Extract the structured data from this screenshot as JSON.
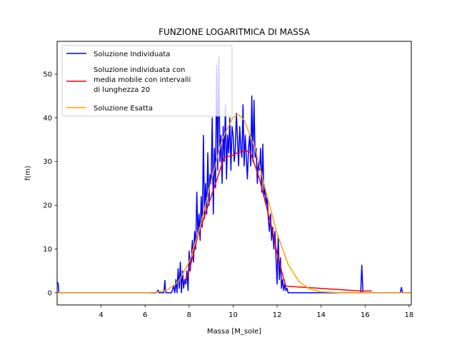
{
  "chart_data": {
    "type": "line",
    "title": "FUNZIONE LOGARITMICA DI MASSA",
    "xlabel": "Massa [M_sole]",
    "ylabel": "f(m)",
    "xlim": [
      2.0,
      18.1
    ],
    "ylim": [
      -2.8,
      57.5
    ],
    "xticks": [
      4,
      6,
      8,
      10,
      12,
      14,
      16,
      18
    ],
    "yticks": [
      0,
      10,
      20,
      30,
      40,
      50
    ],
    "grid": false,
    "legend_position": "top-left",
    "series": [
      {
        "name": "Soluzione Individuata",
        "color": "#0000ff",
        "x": [
          2.0,
          2.05,
          2.08,
          2.1,
          2.2,
          6.5,
          6.6,
          6.62,
          6.7,
          6.8,
          6.85,
          6.9,
          6.92,
          6.95,
          7.0,
          7.1,
          7.2,
          7.3,
          7.35,
          7.4,
          7.45,
          7.5,
          7.55,
          7.6,
          7.65,
          7.7,
          7.75,
          7.8,
          7.85,
          7.9,
          7.95,
          8.0,
          8.05,
          8.1,
          8.15,
          8.2,
          8.25,
          8.3,
          8.35,
          8.4,
          8.45,
          8.5,
          8.55,
          8.6,
          8.65,
          8.7,
          8.75,
          8.8,
          8.85,
          8.9,
          8.95,
          9.0,
          9.05,
          9.1,
          9.15,
          9.2,
          9.25,
          9.3,
          9.35,
          9.4,
          9.45,
          9.5,
          9.55,
          9.6,
          9.65,
          9.7,
          9.75,
          9.8,
          9.85,
          9.9,
          9.95,
          10.0,
          10.05,
          10.1,
          10.15,
          10.2,
          10.25,
          10.3,
          10.35,
          10.4,
          10.45,
          10.5,
          10.55,
          10.6,
          10.65,
          10.7,
          10.75,
          10.8,
          10.85,
          10.9,
          10.95,
          11.0,
          11.05,
          11.1,
          11.15,
          11.2,
          11.25,
          11.3,
          11.35,
          11.4,
          11.45,
          11.5,
          11.55,
          11.6,
          11.65,
          11.7,
          11.75,
          11.8,
          11.85,
          11.9,
          11.95,
          12.0,
          12.05,
          12.1,
          12.15,
          12.2,
          12.25,
          12.3,
          12.35,
          12.4,
          12.45,
          12.5,
          12.55,
          12.6,
          12.7,
          12.8,
          12.9,
          13.0,
          15.8,
          15.85,
          15.9,
          15.95,
          16.0,
          16.1,
          17.6,
          17.65,
          17.7,
          17.75,
          17.8,
          18.1
        ],
        "y": [
          2.5,
          2.0,
          0.0,
          0.0,
          0.0,
          0.0,
          0.6,
          0.0,
          0.0,
          0.0,
          0.0,
          2.8,
          0.5,
          0.0,
          0.0,
          0.0,
          0.0,
          1.5,
          0.0,
          3.0,
          0.0,
          5.5,
          1.0,
          7.0,
          0.0,
          5.0,
          1.0,
          3.0,
          2.0,
          5.0,
          0.5,
          9.5,
          5.0,
          8.5,
          12.0,
          7.0,
          14.0,
          10.0,
          23.0,
          13.0,
          18.0,
          12.0,
          22.0,
          15.0,
          36.0,
          17.0,
          25.0,
          18.0,
          32.0,
          20.0,
          27.0,
          25.0,
          40.0,
          18.0,
          33.0,
          24.0,
          52.0,
          28.0,
          54.0,
          30.0,
          36.0,
          25.0,
          38.0,
          30.0,
          43.0,
          26.0,
          36.0,
          32.0,
          40.0,
          28.0,
          38.0,
          36.0,
          30.0,
          33.0,
          41.0,
          35.0,
          29.0,
          38.0,
          33.0,
          31.0,
          43.0,
          29.0,
          36.0,
          31.0,
          26.0,
          33.0,
          36.0,
          29.0,
          45.0,
          30.0,
          44.0,
          31.0,
          33.0,
          25.0,
          30.0,
          28.0,
          33.0,
          23.0,
          34.0,
          22.0,
          24.0,
          20.0,
          22.0,
          17.0,
          14.0,
          18.0,
          12.0,
          15.0,
          10.0,
          14.0,
          8.0,
          2.0,
          13.0,
          3.0,
          8.0,
          1.0,
          3.0,
          0.5,
          2.0,
          0.5,
          1.0,
          0.0,
          0.0,
          0.0,
          0.0,
          0.0,
          0.0,
          0.0,
          0.0,
          6.3,
          0.0,
          0.0,
          0.0,
          0.0,
          0.0,
          1.2,
          0.0,
          0.0,
          0.0,
          0.0
        ]
      },
      {
        "name": "Soluzione individuata con media mobile con intervalli di lunghezza 20",
        "color": "#ff0000",
        "x": [
          7.8,
          8.0,
          8.2,
          8.4,
          8.6,
          8.8,
          9.0,
          9.2,
          9.4,
          9.6,
          9.8,
          10.0,
          10.2,
          10.4,
          10.6,
          10.8,
          11.0,
          11.2,
          11.4,
          11.6,
          11.8,
          12.0,
          12.2,
          12.4,
          15.8,
          16.3
        ],
        "y": [
          2.5,
          5.0,
          9.0,
          13.0,
          16.0,
          19.0,
          22.0,
          25.0,
          28.0,
          31.0,
          31.2,
          31.5,
          32.0,
          32.3,
          32.5,
          32.0,
          29.0,
          26.0,
          22.0,
          18.0,
          14.0,
          9.0,
          5.0,
          1.5,
          0.4,
          0.4
        ]
      },
      {
        "name": "Soluzione Esatta",
        "color": "#ffa500",
        "x": [
          2.0,
          6.0,
          6.5,
          7.0,
          7.5,
          8.0,
          8.5,
          9.0,
          9.5,
          10.0,
          10.25,
          10.5,
          11.0,
          11.5,
          12.0,
          12.5,
          13.0,
          13.5,
          14.0,
          15.0,
          16.0,
          18.1
        ],
        "y": [
          0.0,
          0.0,
          0.1,
          0.6,
          2.4,
          7.0,
          15.0,
          25.5,
          35.0,
          40.2,
          40.7,
          39.5,
          33.0,
          23.0,
          13.5,
          6.5,
          2.5,
          0.8,
          0.2,
          0.0,
          0.0,
          0.0
        ]
      }
    ]
  }
}
